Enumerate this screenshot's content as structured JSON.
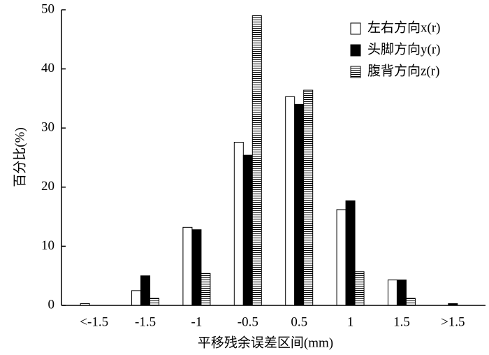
{
  "chart_data": {
    "type": "bar",
    "x_label": "平移残余误差区间(mm)",
    "y_label": "百分比(%)",
    "categories": [
      "<-1.5",
      "-1.5",
      "-1",
      "-0.5",
      "0.5",
      "1",
      "1.5",
      ">1.5"
    ],
    "series": [
      {
        "name": "左右方向x(r)",
        "color": "#ffffff",
        "hatch": false,
        "values": [
          0.3,
          2.5,
          13.2,
          27.6,
          35.3,
          16.2,
          4.3,
          0
        ]
      },
      {
        "name": "头脚方向y(r)",
        "color": "#000000",
        "hatch": false,
        "values": [
          0,
          5.0,
          12.8,
          25.4,
          34.0,
          17.7,
          4.3,
          0.3
        ]
      },
      {
        "name": "腹背方向z(r)",
        "color": "#ffffff",
        "hatch": true,
        "values": [
          0,
          1.2,
          5.4,
          49.0,
          36.4,
          5.7,
          1.2,
          0
        ]
      }
    ],
    "ylim": [
      0,
      50
    ],
    "yticks": [
      0,
      10,
      20,
      30,
      40,
      50
    ],
    "legend": "upper right"
  }
}
